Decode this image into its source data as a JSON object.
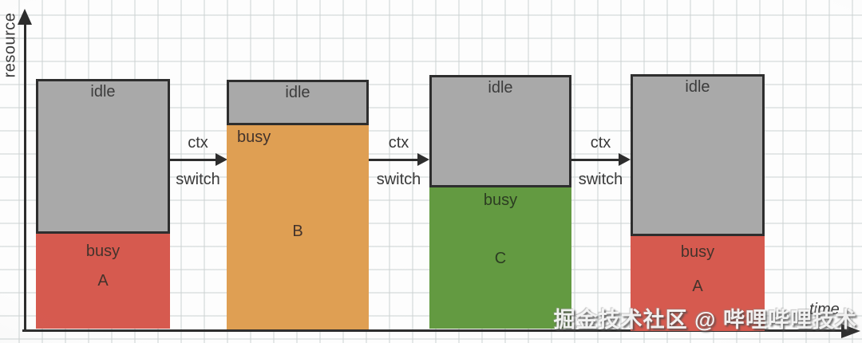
{
  "diagram": {
    "y_axis_label": "resource",
    "x_axis_label": "time",
    "watermark": "掘金技术社区 @ 哔哩哔哩技术"
  },
  "bars": [
    {
      "id": "A-first",
      "idle_label": "idle",
      "busy_label": "busy",
      "process": "A",
      "idle_color": "#a9a9a9",
      "busy_color": "#d65a4f"
    },
    {
      "id": "B",
      "idle_label": "idle",
      "busy_label": "busy",
      "process": "B",
      "idle_color": "#a9a9a9",
      "busy_color": "#df9f53"
    },
    {
      "id": "C",
      "idle_label": "idle",
      "busy_label": "busy",
      "process": "C",
      "idle_color": "#a9a9a9",
      "busy_color": "#639a41"
    },
    {
      "id": "A-second",
      "idle_label": "idle",
      "busy_label": "busy",
      "process": "A",
      "idle_color": "#a9a9a9",
      "busy_color": "#d65a4f"
    }
  ],
  "arrows": [
    {
      "top_label": "ctx",
      "bottom_label": "switch"
    },
    {
      "top_label": "ctx",
      "bottom_label": "switch"
    },
    {
      "top_label": "ctx",
      "bottom_label": "switch"
    }
  ],
  "colors": {
    "axis": "#2d2d2d",
    "idle_gray": "#a9a9a9",
    "busy_red": "#d65a4f",
    "busy_orange": "#df9f53",
    "busy_green": "#639a41",
    "grid_line": "#cbd2d2"
  }
}
